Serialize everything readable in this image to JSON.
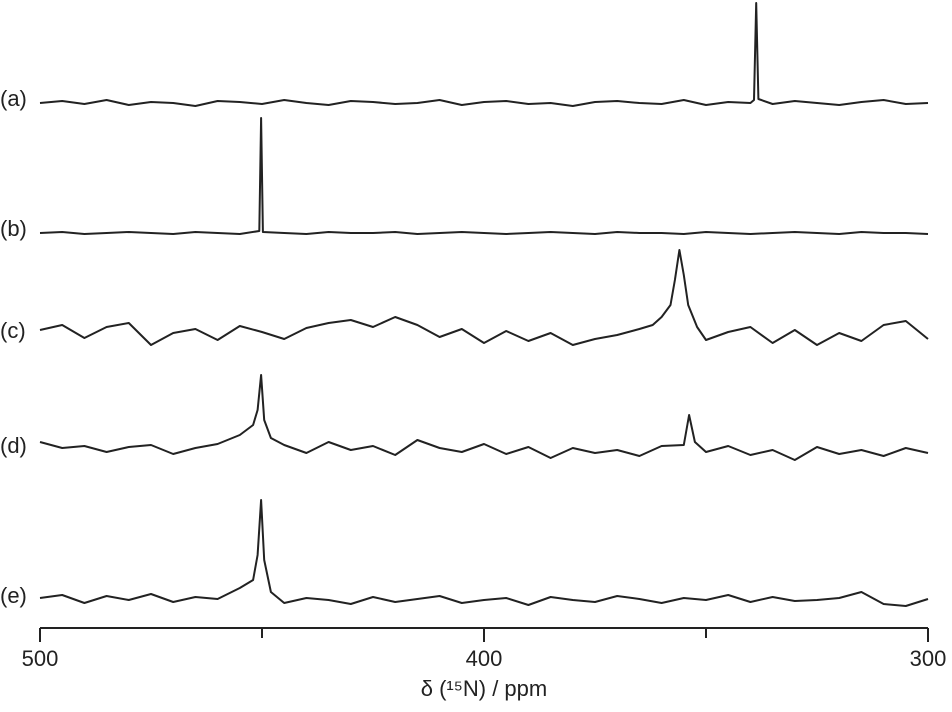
{
  "chart_data": {
    "type": "stacked-spectra",
    "x_label": "δ (¹⁵N) / ppm",
    "xlim": [
      500,
      300
    ],
    "xticks": [
      500,
      400,
      300
    ],
    "xminor_ticks": [
      450,
      350
    ],
    "series": [
      {
        "name": "(a)",
        "color": "#222222",
        "x": [
          500,
          495,
          490,
          485,
          480,
          475,
          470,
          465,
          460,
          455,
          450,
          445,
          440,
          435,
          430,
          425,
          420,
          415,
          410,
          405,
          400,
          395,
          390,
          385,
          380,
          375,
          370,
          365,
          360,
          355,
          350,
          345,
          340,
          339.2,
          338.7,
          338.2,
          335,
          330,
          325,
          320,
          315,
          310,
          305,
          300
        ],
        "values": [
          0,
          2,
          -1,
          3,
          -2,
          1,
          0,
          -3,
          2,
          1,
          -1,
          3,
          0,
          -2,
          2,
          1,
          -1,
          0,
          3,
          -2,
          1,
          2,
          -1,
          0,
          -3,
          1,
          2,
          0,
          -1,
          3,
          -2,
          1,
          0,
          3,
          100,
          4,
          -1,
          2,
          0,
          -2,
          1,
          3,
          -1,
          0
        ]
      },
      {
        "name": "(b)",
        "color": "#222222",
        "x": [
          500,
          495,
          490,
          485,
          480,
          475,
          470,
          465,
          460,
          455,
          450.6,
          450.2,
          449.8,
          445,
          440,
          435,
          430,
          425,
          420,
          415,
          410,
          405,
          400,
          395,
          390,
          385,
          380,
          375,
          370,
          365,
          360,
          355,
          350,
          345,
          340,
          335,
          330,
          325,
          320,
          315,
          310,
          305,
          300
        ],
        "values": [
          0,
          1,
          -1,
          0,
          1,
          0,
          -1,
          1,
          0,
          -1,
          2,
          115,
          1,
          0,
          -1,
          1,
          0,
          0,
          1,
          -1,
          0,
          1,
          0,
          -1,
          0,
          1,
          0,
          -1,
          1,
          0,
          0,
          -1,
          1,
          0,
          -1,
          0,
          1,
          0,
          -1,
          1,
          0,
          0,
          -1
        ]
      },
      {
        "name": "(c)",
        "color": "#222222",
        "x": [
          500,
          495,
          490,
          485,
          480,
          475,
          470,
          465,
          460,
          455,
          450,
          445,
          440,
          435,
          430,
          425,
          420,
          415,
          410,
          405,
          400,
          395,
          390,
          385,
          380,
          375,
          370,
          365,
          362,
          360,
          358,
          357,
          356,
          355,
          354,
          352,
          350,
          345,
          340,
          335,
          330,
          325,
          320,
          315,
          310,
          305,
          300
        ],
        "values": [
          5,
          10,
          -3,
          8,
          12,
          -10,
          2,
          6,
          -5,
          9,
          3,
          -4,
          7,
          12,
          15,
          8,
          18,
          10,
          -2,
          6,
          -8,
          4,
          -6,
          2,
          -10,
          -4,
          0,
          6,
          10,
          18,
          30,
          55,
          85,
          60,
          30,
          8,
          -5,
          3,
          8,
          -8,
          5,
          -10,
          2,
          -6,
          10,
          14,
          -4
        ]
      },
      {
        "name": "(d)",
        "color": "#222222",
        "x": [
          500,
          495,
          490,
          485,
          480,
          475,
          470,
          465,
          460,
          455,
          452,
          451,
          450.2,
          449.5,
          448,
          445,
          440,
          435,
          430,
          425,
          420,
          415,
          410,
          405,
          400,
          395,
          390,
          385,
          380,
          375,
          370,
          365,
          360,
          355,
          353.8,
          352.5,
          350,
          345,
          340,
          335,
          330,
          325,
          320,
          315,
          310,
          305,
          300
        ],
        "values": [
          8,
          2,
          4,
          -2,
          3,
          5,
          -4,
          2,
          6,
          15,
          25,
          40,
          75,
          30,
          12,
          5,
          -3,
          8,
          0,
          4,
          -5,
          10,
          2,
          -2,
          6,
          -4,
          3,
          -8,
          2,
          -3,
          0,
          -6,
          4,
          5,
          35,
          8,
          -2,
          4,
          -5,
          0,
          -10,
          3,
          -4,
          0,
          -6,
          2,
          -3
        ]
      },
      {
        "name": "(e)",
        "color": "#222222",
        "x": [
          500,
          495,
          490,
          485,
          480,
          475,
          470,
          465,
          460,
          455,
          452,
          451,
          450.2,
          449.5,
          448,
          445,
          440,
          435,
          430,
          425,
          420,
          415,
          410,
          405,
          400,
          395,
          390,
          385,
          380,
          375,
          370,
          365,
          360,
          355,
          350,
          345,
          340,
          335,
          330,
          325,
          320,
          315,
          310,
          305,
          300
        ],
        "values": [
          2,
          5,
          -3,
          4,
          0,
          6,
          -2,
          3,
          1,
          12,
          20,
          45,
          100,
          40,
          8,
          -3,
          2,
          0,
          -4,
          3,
          -2,
          1,
          4,
          -3,
          0,
          2,
          -5,
          3,
          0,
          -2,
          4,
          1,
          -3,
          2,
          0,
          5,
          -2,
          3,
          -1,
          0,
          2,
          8,
          -4,
          -6,
          1
        ]
      }
    ]
  }
}
